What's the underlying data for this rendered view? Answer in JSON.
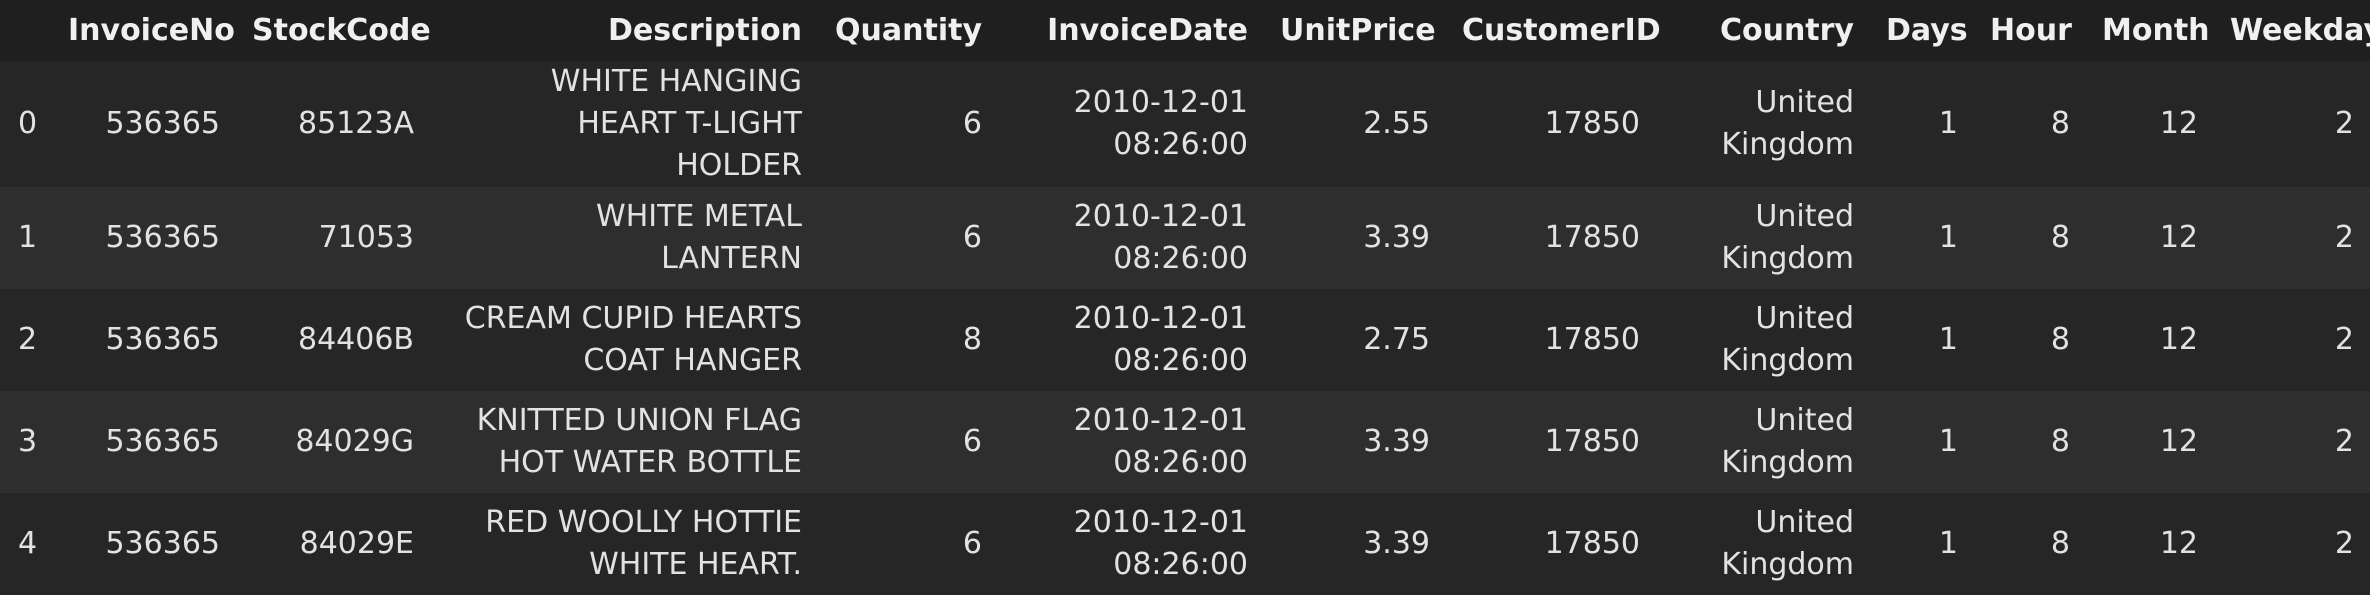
{
  "table": {
    "index_header": "",
    "columns": [
      "InvoiceNo",
      "StockCode",
      "Description",
      "Quantity",
      "InvoiceDate",
      "UnitPrice",
      "CustomerID",
      "Country",
      "Days",
      "Hour",
      "Month",
      "Weekdays"
    ],
    "rows": [
      {
        "index": "0",
        "cells": [
          "536365",
          "85123A",
          "WHITE HANGING HEART T-LIGHT HOLDER",
          "6",
          "2010-12-01 08:26:00",
          "2.55",
          "17850",
          "United Kingdom",
          "1",
          "8",
          "12",
          "2"
        ]
      },
      {
        "index": "1",
        "cells": [
          "536365",
          "71053",
          "WHITE METAL LANTERN",
          "6",
          "2010-12-01 08:26:00",
          "3.39",
          "17850",
          "United Kingdom",
          "1",
          "8",
          "12",
          "2"
        ]
      },
      {
        "index": "2",
        "cells": [
          "536365",
          "84406B",
          "CREAM CUPID HEARTS COAT HANGER",
          "8",
          "2010-12-01 08:26:00",
          "2.75",
          "17850",
          "United Kingdom",
          "1",
          "8",
          "12",
          "2"
        ]
      },
      {
        "index": "3",
        "cells": [
          "536365",
          "84029G",
          "KNITTED UNION FLAG HOT WATER BOTTLE",
          "6",
          "2010-12-01 08:26:00",
          "3.39",
          "17850",
          "United Kingdom",
          "1",
          "8",
          "12",
          "2"
        ]
      },
      {
        "index": "4",
        "cells": [
          "536365",
          "84029E",
          "RED WOOLLY HOTTIE WHITE HEART.",
          "6",
          "2010-12-01 08:26:00",
          "3.39",
          "17850",
          "United Kingdom",
          "1",
          "8",
          "12",
          "2"
        ]
      }
    ]
  }
}
